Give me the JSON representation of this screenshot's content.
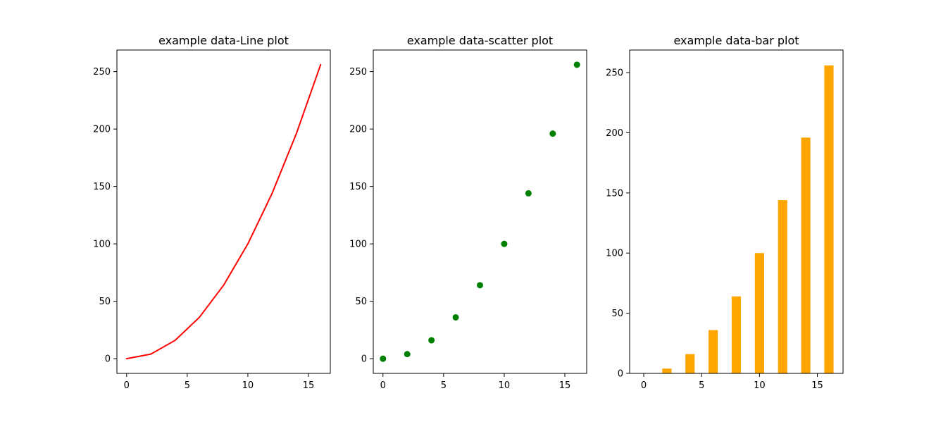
{
  "chart_data": [
    {
      "type": "line",
      "title": "example data-Line plot",
      "xlabel": "",
      "ylabel": "",
      "x": [
        0,
        2,
        4,
        6,
        8,
        10,
        12,
        14,
        16
      ],
      "values": [
        0,
        4,
        16,
        36,
        64,
        100,
        144,
        196,
        256
      ],
      "color": "#ff0000",
      "xlim": [
        -0.8,
        16.8
      ],
      "ylim": [
        -12.8,
        268.8
      ],
      "xticks": [
        0,
        5,
        10,
        15
      ],
      "yticks": [
        0,
        50,
        100,
        150,
        200,
        250
      ],
      "grid": false
    },
    {
      "type": "scatter",
      "title": "example data-scatter plot",
      "xlabel": "",
      "ylabel": "",
      "x": [
        0,
        2,
        4,
        6,
        8,
        10,
        12,
        14,
        16
      ],
      "values": [
        0,
        4,
        16,
        36,
        64,
        100,
        144,
        196,
        256
      ],
      "color": "#008000",
      "xlim": [
        -0.8,
        16.8
      ],
      "ylim": [
        -12.8,
        268.8
      ],
      "xticks": [
        0,
        5,
        10,
        15
      ],
      "yticks": [
        0,
        50,
        100,
        150,
        200,
        250
      ],
      "grid": false
    },
    {
      "type": "bar",
      "title": "example data-bar plot",
      "xlabel": "",
      "ylabel": "",
      "x": [
        0,
        2,
        4,
        6,
        8,
        10,
        12,
        14,
        16
      ],
      "values": [
        0,
        4,
        16,
        36,
        64,
        100,
        144,
        196,
        256
      ],
      "bar_width": 0.8,
      "color": "#ffa500",
      "xlim": [
        -1.22,
        17.22
      ],
      "ylim": [
        0,
        268.8
      ],
      "xticks": [
        0,
        5,
        10,
        15
      ],
      "yticks": [
        0,
        50,
        100,
        150,
        200,
        250
      ],
      "grid": false
    }
  ]
}
